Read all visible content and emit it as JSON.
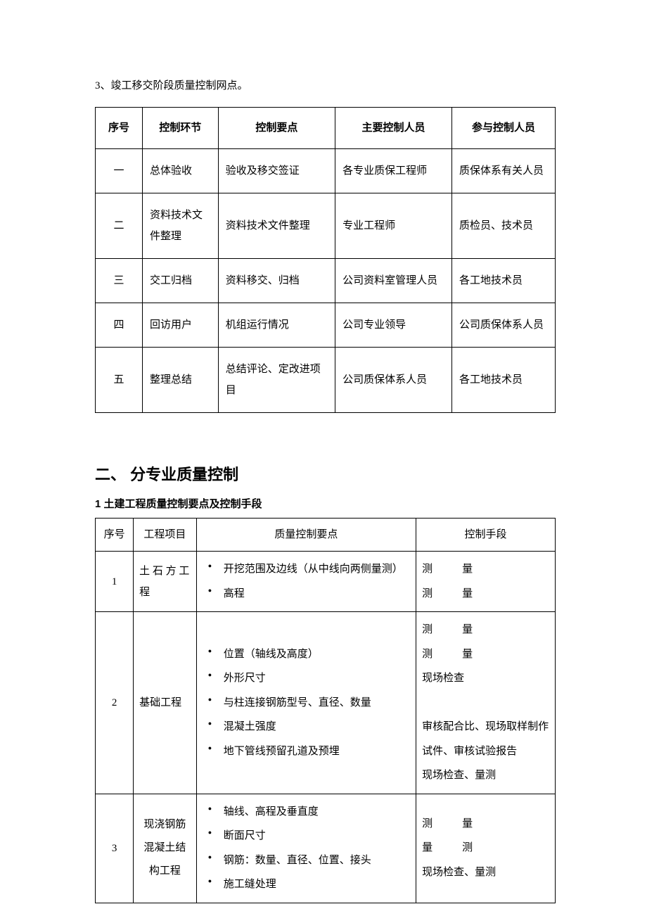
{
  "intro": "3、竣工移交阶段质量控制网点。",
  "table1": {
    "headers": [
      "序号",
      "控制环节",
      "控制要点",
      "主要控制人员",
      "参与控制人员"
    ],
    "rows": [
      [
        "一",
        "总体验收",
        "验收及移交签证",
        "各专业质保工程师",
        "质保体系有关人员"
      ],
      [
        "二",
        "资料技术文件整理",
        "资料技术文件整理",
        "专业工程师",
        "质检员、技术员"
      ],
      [
        "三",
        "交工归档",
        "资料移交、归档",
        "公司资料室管理人员",
        "各工地技术员"
      ],
      [
        "四",
        "回访用户",
        "机组运行情况",
        "公司专业领导",
        "公司质保体系人员"
      ],
      [
        "五",
        "整理总结",
        "总结评论、定改进项目",
        "公司质保体系人员",
        "各工地技术员"
      ]
    ]
  },
  "section_heading": "二、 分专业质量控制",
  "sub_heading": "1 土建工程质量控制要点及控制手段",
  "table2": {
    "headers": [
      "序号",
      "工程项目",
      "质量控制要点",
      "控制手段"
    ],
    "rows": [
      {
        "num": "1",
        "proj": "土 石 方 工程",
        "points": [
          "开挖范围及边线（从中线向两侧量测）",
          "高程"
        ],
        "ctrl_lines": [
          {
            "t": "测量",
            "spaced": true
          },
          {
            "t": "测量",
            "spaced": true
          }
        ]
      },
      {
        "num": "2",
        "proj": "基础工程",
        "points": [
          "位置（轴线及高度）",
          "外形尺寸",
          "与柱连接钢筋型号、直径、数量",
          "混凝土强度",
          "地下管线预留孔道及预埋"
        ],
        "ctrl_lines": [
          {
            "t": "测量",
            "spaced": true
          },
          {
            "t": "测量",
            "spaced": true
          },
          {
            "t": "现场检查",
            "spaced": false
          },
          {
            "t": " ",
            "spaced": false
          },
          {
            "t": "审核配合比、现场取样制作试件、审核试验报告",
            "spaced": false
          },
          {
            "t": "现场检查、量测",
            "spaced": false
          }
        ]
      },
      {
        "num": "3",
        "proj": "现浇钢筋混凝土结构工程",
        "points": [
          "轴线、高程及垂直度",
          "断面尺寸",
          "钢筋：数量、直径、位置、接头",
          "施工缝处理"
        ],
        "ctrl_lines": [
          {
            "t": "测量",
            "spaced": true
          },
          {
            "t": "量测",
            "spaced": true,
            "rev": true
          },
          {
            "t": "现场检查、量测",
            "spaced": false
          }
        ]
      }
    ]
  }
}
